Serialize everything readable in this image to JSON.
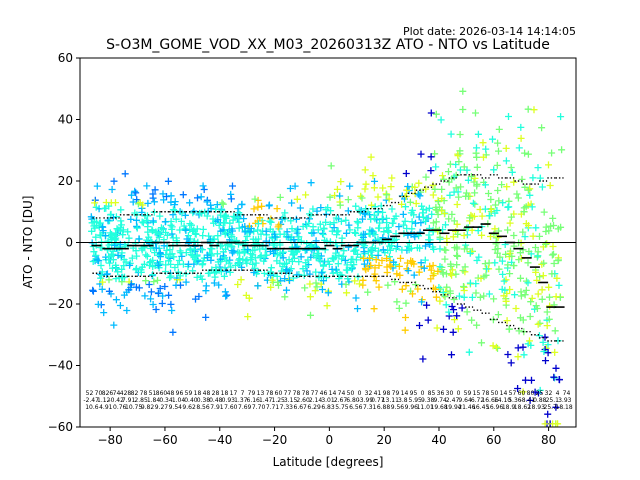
{
  "chart_data": {
    "type": "scatter",
    "title": "S-O3M_GOME_VOD_XX_M03_20260313Z ATO - NTO vs Latitude",
    "plot_date": "Plot date: 2026-03-14 14:14:05",
    "xlabel": "Latitude [degrees]",
    "ylabel": "ATO - NTO [DU]",
    "xlim": [
      -91,
      90
    ],
    "ylim": [
      -60,
      60
    ],
    "xticks": [
      -80,
      -60,
      -40,
      -20,
      0,
      20,
      40,
      60,
      80
    ],
    "xtick_labels": [
      "−80",
      "−60",
      "−40",
      "−20",
      "0",
      "20",
      "40",
      "60",
      "80"
    ],
    "yticks": [
      -60,
      -40,
      -20,
      0,
      20,
      40,
      60
    ],
    "ytick_labels": [
      "−60",
      "−40",
      "−20",
      "0",
      "20",
      "40",
      "60"
    ],
    "grid": false,
    "zero_line": 0,
    "marker": "+",
    "palette": [
      "#0000cc",
      "#0077ff",
      "#00bbff",
      "#22ffdd",
      "#77ff77",
      "#ddff22",
      "#ffcc00"
    ],
    "lat_centers": [
      -85,
      -81,
      -78,
      -75,
      -72,
      -69,
      -66,
      -63,
      -60,
      -57,
      -54,
      -51,
      -48,
      -45,
      -42,
      -39,
      -36,
      -33,
      -30,
      -27,
      -24,
      -21,
      -18,
      -15,
      -12,
      -9,
      -6,
      -3,
      0,
      3,
      6,
      9,
      12,
      15,
      18,
      21,
      24,
      27,
      30,
      33,
      36,
      39,
      42,
      45,
      48,
      51,
      54,
      57,
      60,
      63,
      66,
      69,
      72,
      75,
      78,
      81,
      84
    ],
    "mean": [
      -1,
      -2,
      -2,
      -2,
      -1,
      -1,
      -1,
      0,
      0,
      -1,
      -1,
      -1,
      -1,
      0,
      -1,
      0,
      0,
      0,
      -1,
      -1,
      -1,
      -2,
      -2,
      -2,
      -2,
      -2,
      -2,
      -2,
      -1,
      -2,
      -1,
      -1,
      0,
      0,
      0,
      1,
      2,
      3,
      3,
      3,
      4,
      4,
      3,
      4,
      4,
      5,
      5,
      6,
      3,
      2,
      0,
      -2,
      -5,
      -8,
      -13,
      -21,
      -21
    ],
    "sd_upper": [
      8,
      8,
      8,
      9,
      9,
      9,
      9,
      10,
      10,
      10,
      10,
      10,
      10,
      10,
      10,
      10,
      10,
      9,
      9,
      9,
      9,
      8,
      8,
      8,
      8,
      8,
      9,
      9,
      9,
      9,
      9,
      10,
      10,
      11,
      11,
      12,
      13,
      15,
      16,
      17,
      18,
      19,
      20,
      21,
      22,
      22,
      22,
      21,
      22,
      21,
      21,
      20,
      19,
      19,
      20,
      21,
      21
    ],
    "sd_lower": [
      -10,
      -11,
      -11,
      -11,
      -11,
      -11,
      -11,
      -10,
      -10,
      -10,
      -10,
      -10,
      -10,
      -9,
      -9,
      -9,
      -9,
      -9,
      -9,
      -9,
      -9,
      -10,
      -10,
      -10,
      -11,
      -11,
      -11,
      -11,
      -11,
      -11,
      -11,
      -11,
      -11,
      -11,
      -11,
      -11,
      -12,
      -13,
      -13,
      -14,
      -15,
      -16,
      -17,
      -18,
      -20,
      -21,
      -22,
      -23,
      -25,
      -26,
      -27,
      -28,
      -29,
      -30,
      -31,
      -32,
      -32
    ],
    "stats_rows": [
      [
        "52",
        "70",
        "826",
        "74",
        "428",
        "82",
        "78",
        "51",
        "860",
        "48",
        "96",
        "59",
        "18",
        "48",
        "28",
        "18",
        "17",
        "7",
        "79",
        "13",
        "78",
        "60",
        "77",
        "78",
        "78",
        "77",
        "46",
        "14",
        "74",
        "50",
        "0",
        "32",
        "41",
        "98",
        "79",
        "14",
        "95",
        "0",
        "85",
        "36",
        "30",
        "0",
        "59",
        "15",
        "78",
        "50",
        "14",
        "57",
        "60",
        "80",
        "25",
        "32",
        "4",
        "74"
      ],
      [
        "-2.47",
        "1.12",
        "-0.42",
        "7.91",
        "2.85",
        "1.84",
        "0.34",
        "1.04",
        "0.40",
        "0.38",
        "0.48",
        "0.93",
        "1.37",
        "6.16",
        "1.47",
        "1.25",
        "3.15",
        "2.60",
        "2.14",
        "3.01",
        "2.67",
        "6.80",
        "-3.99",
        "0.77",
        "13.11",
        "3.8",
        "5.95",
        "9.38",
        "9.74",
        "2.47",
        "9.64",
        "6.72",
        "16.66",
        "14.10",
        "5.36",
        "-8.41",
        "0.88",
        "25.1",
        "3.93"
      ],
      [
        "10.6",
        "4.91",
        "0.76",
        "10.75",
        "9.82",
        "9.27",
        "9.54",
        "9.62",
        "8.56",
        "7.91",
        "7.60",
        "7.69",
        "7.70",
        "7.71",
        "7.33",
        "6.67",
        "6.29",
        "6.83",
        "5.75",
        "6.56",
        "7.31",
        "6.88",
        "9.56",
        "9.96",
        "11.01",
        "19.68",
        "19.94",
        "21.46",
        "16.45",
        "16.96",
        "18.9",
        "18.62",
        "18.93",
        "25.7",
        "18.18"
      ]
    ]
  }
}
